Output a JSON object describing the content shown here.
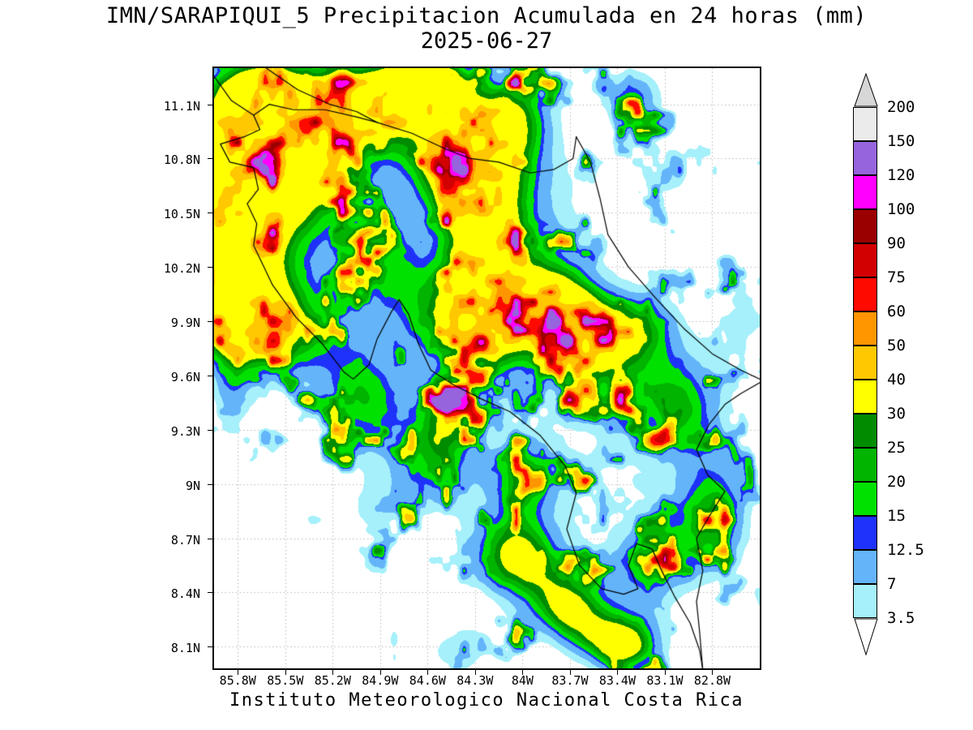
{
  "window": {
    "background": "#ffffff"
  },
  "chart_data": {
    "type": "heatmap",
    "title": "IMN/SARAPIQUI_5 Precipitacion Acumulada en 24 horas (mm)",
    "subtitle": "2025-06-27",
    "footer": "Instituto Meteorologico Nacional Costa Rica",
    "unit": "mm",
    "x_axis": {
      "range": [
        -85.95,
        -82.5
      ],
      "tick_labels": [
        "85.8W",
        "85.5W",
        "85.2W",
        "84.9W",
        "84.6W",
        "84.3W",
        "84W",
        "83.7W",
        "83.4W",
        "83.1W",
        "82.8W"
      ],
      "tick_values": [
        -85.8,
        -85.5,
        -85.2,
        -84.9,
        -84.6,
        -84.3,
        -84.0,
        -83.7,
        -83.4,
        -83.1,
        -82.8
      ]
    },
    "y_axis": {
      "range": [
        7.98,
        11.3
      ],
      "tick_labels": [
        "11.1N",
        "10.8N",
        "10.5N",
        "10.2N",
        "9.9N",
        "9.6N",
        "9.3N",
        "9N",
        "8.7N",
        "8.4N",
        "8.1N"
      ],
      "tick_values": [
        11.1,
        10.8,
        10.5,
        10.2,
        9.9,
        9.6,
        9.3,
        9.0,
        8.7,
        8.4,
        8.1
      ]
    },
    "grid": {
      "style": "dotted",
      "color": "#b9b9b9"
    },
    "colorbar": {
      "levels": [
        3.5,
        7,
        12.5,
        15,
        20,
        25,
        30,
        40,
        50,
        60,
        75,
        90,
        100,
        120,
        150,
        200
      ],
      "bin_colors": [
        "#ffffff",
        "#a5f0fa",
        "#64b4fa",
        "#1e32fa",
        "#00e100",
        "#00b400",
        "#008c00",
        "#ffff00",
        "#ffc800",
        "#ff9600",
        "#ff0a00",
        "#d20000",
        "#9b0000",
        "#ff00ff",
        "#9664dc",
        "#ebebeb",
        "#ffffff"
      ],
      "arrow_top_color": "#d7d7d7",
      "arrow_bottom_color": "#ffffff"
    },
    "field": {
      "comment_units": "precip cells: [lonCenter, latCenter, lonRadiusDeg, latRadiusDeg, relativeIntensity]",
      "regions": [
        [
          -85.75,
          11.05,
          0.35,
          0.35,
          1.1
        ],
        [
          -85.45,
          10.78,
          0.42,
          0.5,
          1.0
        ],
        [
          -85.8,
          10.45,
          0.3,
          0.4,
          1.05
        ],
        [
          -84.9,
          11.12,
          0.45,
          0.3,
          1.0
        ],
        [
          -84.55,
          11.22,
          0.3,
          0.18,
          0.9
        ],
        [
          -84.05,
          11.05,
          0.28,
          0.25,
          0.85
        ],
        [
          -84.4,
          10.75,
          0.33,
          0.28,
          1.05
        ],
        [
          -84.0,
          10.6,
          0.45,
          0.4,
          0.55
        ],
        [
          -84.25,
          10.3,
          0.25,
          0.33,
          0.85
        ],
        [
          -85.85,
          9.95,
          0.3,
          0.3,
          1.15
        ],
        [
          -85.5,
          9.85,
          0.4,
          0.33,
          0.85
        ],
        [
          -85.0,
          9.45,
          0.3,
          0.33,
          0.75
        ],
        [
          -84.9,
          10.25,
          0.28,
          0.28,
          0.55
        ],
        [
          -84.55,
          9.95,
          0.33,
          0.3,
          0.6
        ],
        [
          -84.2,
          9.8,
          0.28,
          0.28,
          0.7
        ],
        [
          -83.8,
          10.0,
          0.33,
          0.28,
          1.0
        ],
        [
          -83.55,
          9.75,
          0.33,
          0.28,
          0.9
        ],
        [
          -83.2,
          9.9,
          0.25,
          0.22,
          0.55
        ],
        [
          -83.0,
          9.45,
          0.33,
          0.33,
          0.85
        ],
        [
          -82.62,
          9.92,
          0.22,
          0.25,
          0.45
        ],
        [
          -82.78,
          8.82,
          0.28,
          0.38,
          0.95
        ],
        [
          -83.2,
          8.55,
          0.28,
          0.28,
          0.8
        ],
        [
          -84.05,
          8.6,
          0.33,
          0.28,
          1.1
        ],
        [
          -83.7,
          8.3,
          0.28,
          0.23,
          1.0
        ],
        [
          -83.35,
          8.1,
          0.28,
          0.18,
          1.15
        ],
        [
          -84.55,
          9.1,
          0.28,
          0.28,
          0.75
        ],
        [
          -84.45,
          9.4,
          0.2,
          0.2,
          0.65
        ],
        [
          -84.95,
          8.85,
          0.22,
          0.22,
          0.45
        ],
        [
          -84.4,
          8.08,
          0.28,
          0.16,
          0.6
        ],
        [
          -83.3,
          11.15,
          0.23,
          0.18,
          0.8
        ],
        [
          -83.05,
          10.7,
          0.38,
          0.28,
          0.45
        ],
        [
          -85.85,
          9.45,
          0.14,
          0.22,
          0.5
        ],
        [
          -84.0,
          9.05,
          0.22,
          0.2,
          0.7
        ],
        [
          -84.4,
          9.9,
          1.2,
          1.0,
          0.25
        ],
        [
          -85.45,
          10.9,
          0.7,
          0.55,
          0.3
        ],
        [
          -83.55,
          9.1,
          0.5,
          0.45,
          0.35
        ]
      ],
      "noise_wavelengths": [
        0.22,
        0.11,
        0.055
      ],
      "noise_weights": [
        0.5,
        0.3,
        0.2
      ],
      "seed": 11
    },
    "coastline": [
      [
        [
          -85.97,
          11.28
        ],
        [
          -85.84,
          11.12
        ],
        [
          -85.7,
          11.04
        ],
        [
          -85.66,
          10.96
        ],
        [
          -85.76,
          10.92
        ],
        [
          -85.91,
          10.88
        ],
        [
          -85.85,
          10.78
        ],
        [
          -85.7,
          10.75
        ],
        [
          -85.67,
          10.63
        ],
        [
          -85.74,
          10.55
        ],
        [
          -85.68,
          10.44
        ],
        [
          -85.7,
          10.32
        ],
        [
          -85.58,
          10.1
        ],
        [
          -85.43,
          9.92
        ],
        [
          -85.27,
          9.78
        ],
        [
          -85.13,
          9.62
        ],
        [
          -85.07,
          9.58
        ],
        [
          -84.97,
          9.66
        ],
        [
          -84.92,
          9.8
        ],
        [
          -84.83,
          9.95
        ],
        [
          -84.78,
          10.02
        ],
        [
          -84.72,
          9.94
        ],
        [
          -84.66,
          9.78
        ],
        [
          -84.58,
          9.63
        ],
        [
          -84.44,
          9.55
        ],
        [
          -84.26,
          9.47
        ],
        [
          -84.08,
          9.4
        ],
        [
          -83.89,
          9.27
        ],
        [
          -83.73,
          9.1
        ],
        [
          -83.66,
          8.95
        ],
        [
          -83.72,
          8.75
        ],
        [
          -83.64,
          8.55
        ],
        [
          -83.5,
          8.42
        ],
        [
          -83.36,
          8.39
        ],
        [
          -83.27,
          8.42
        ],
        [
          -83.33,
          8.55
        ],
        [
          -83.28,
          8.67
        ],
        [
          -83.18,
          8.64
        ],
        [
          -83.12,
          8.52
        ],
        [
          -83.04,
          8.38
        ],
        [
          -82.94,
          8.23
        ],
        [
          -82.88,
          8.08
        ],
        [
          -82.86,
          7.97
        ]
      ],
      [
        [
          -83.66,
          10.92
        ],
        [
          -83.57,
          10.78
        ],
        [
          -83.51,
          10.58
        ],
        [
          -83.46,
          10.38
        ],
        [
          -83.33,
          10.2
        ],
        [
          -83.16,
          10.03
        ],
        [
          -82.98,
          9.86
        ],
        [
          -82.8,
          9.72
        ],
        [
          -82.62,
          9.63
        ],
        [
          -82.5,
          9.58
        ]
      ],
      [
        [
          -85.7,
          11.04
        ],
        [
          -85.6,
          11.1
        ],
        [
          -85.45,
          11.07
        ],
        [
          -85.25,
          11.07
        ],
        [
          -85.05,
          11.03
        ],
        [
          -84.92,
          11.0
        ],
        [
          -84.7,
          10.94
        ],
        [
          -84.48,
          10.85
        ],
        [
          -84.33,
          10.8
        ],
        [
          -84.15,
          10.78
        ],
        [
          -83.95,
          10.72
        ],
        [
          -83.8,
          10.74
        ],
        [
          -83.68,
          10.8
        ],
        [
          -83.66,
          10.92
        ]
      ],
      [
        [
          -85.62,
          11.3
        ],
        [
          -85.42,
          11.18
        ],
        [
          -85.22,
          11.1
        ],
        [
          -85.05,
          11.06
        ],
        [
          -84.92,
          11.0
        ]
      ],
      [
        [
          -82.5,
          9.56
        ],
        [
          -82.62,
          9.5
        ],
        [
          -82.72,
          9.44
        ],
        [
          -82.82,
          9.33
        ],
        [
          -82.9,
          9.19
        ],
        [
          -82.83,
          9.05
        ],
        [
          -82.72,
          8.96
        ],
        [
          -82.82,
          8.82
        ],
        [
          -82.9,
          8.7
        ],
        [
          -82.86,
          8.52
        ],
        [
          -82.9,
          8.35
        ],
        [
          -82.88,
          8.18
        ],
        [
          -82.86,
          7.97
        ]
      ]
    ]
  }
}
